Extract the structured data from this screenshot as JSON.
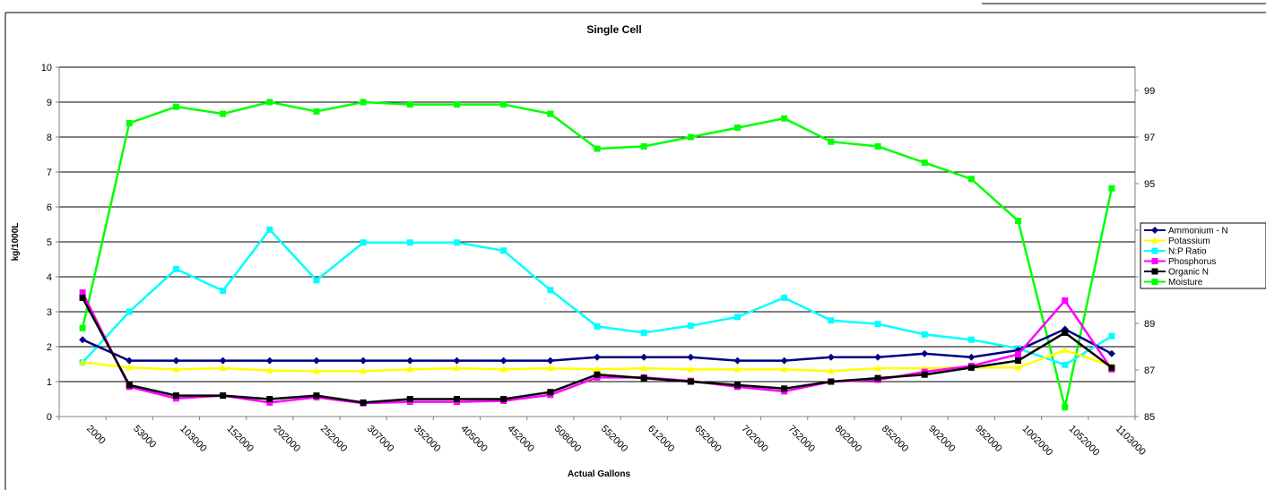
{
  "chart_data": {
    "type": "line",
    "title": "Single Cell",
    "xlabel": "Actual Gallons",
    "ylabel": "kg/1000L",
    "ylim": [
      0,
      10
    ],
    "y2lim": [
      85,
      100
    ],
    "yticks": [
      0,
      1,
      2,
      3,
      4,
      5,
      6,
      7,
      8,
      9,
      10
    ],
    "y2ticks": [
      85,
      87,
      89,
      91,
      93,
      95,
      97,
      99
    ],
    "categories": [
      "2000",
      "53000",
      "103000",
      "152000",
      "202000",
      "252000",
      "307000",
      "352000",
      "405000",
      "452000",
      "508000",
      "552000",
      "612000",
      "652000",
      "702000",
      "752000",
      "802000",
      "852000",
      "902000",
      "952000",
      "1002000",
      "1052000",
      "1103000"
    ],
    "grid": "horizontal",
    "legend_position": "right",
    "series": [
      {
        "name": "Ammonium - N",
        "axis": "left",
        "color": "#000080",
        "marker": "diamond",
        "values": [
          2.2,
          1.6,
          1.6,
          1.6,
          1.6,
          1.6,
          1.6,
          1.6,
          1.6,
          1.6,
          1.6,
          1.7,
          1.7,
          1.7,
          1.6,
          1.6,
          1.7,
          1.7,
          1.8,
          1.7,
          1.9,
          2.5,
          1.8
        ]
      },
      {
        "name": "Potassium",
        "axis": "left",
        "color": "#ffff00",
        "marker": "triangle",
        "values": [
          1.55,
          1.4,
          1.35,
          1.38,
          1.32,
          1.3,
          1.3,
          1.35,
          1.38,
          1.35,
          1.38,
          1.35,
          1.38,
          1.35,
          1.35,
          1.35,
          1.3,
          1.38,
          1.38,
          1.4,
          1.4,
          1.9,
          1.45
        ]
      },
      {
        "name": "N:P Ratio",
        "axis": "left",
        "color": "#00ffff",
        "marker": "square",
        "values": [
          1.55,
          3.0,
          4.22,
          3.6,
          5.35,
          3.9,
          4.98,
          4.98,
          4.98,
          4.75,
          3.62,
          2.58,
          2.4,
          2.6,
          2.85,
          3.4,
          2.75,
          2.65,
          2.35,
          2.2,
          1.95,
          1.48,
          2.3
        ]
      },
      {
        "name": "Phosphorus",
        "axis": "left",
        "color": "#ff00ff",
        "marker": "square",
        "values": [
          3.55,
          0.85,
          0.52,
          0.6,
          0.4,
          0.55,
          0.38,
          0.42,
          0.42,
          0.45,
          0.62,
          1.12,
          1.12,
          1.02,
          0.85,
          0.72,
          1.0,
          1.05,
          1.28,
          1.45,
          1.78,
          3.32,
          1.35
        ]
      },
      {
        "name": "Organic N",
        "axis": "left",
        "color": "#000000",
        "marker": "square",
        "values": [
          3.4,
          0.9,
          0.6,
          0.6,
          0.5,
          0.6,
          0.4,
          0.5,
          0.5,
          0.5,
          0.7,
          1.2,
          1.1,
          1.0,
          0.9,
          0.8,
          1.0,
          1.1,
          1.2,
          1.4,
          1.6,
          2.4,
          1.4
        ]
      },
      {
        "name": "Moisture",
        "axis": "right",
        "color": "#00ff00",
        "marker": "square",
        "values": [
          88.8,
          97.6,
          98.3,
          98.0,
          98.5,
          98.1,
          98.5,
          98.4,
          98.4,
          98.4,
          98.0,
          96.5,
          96.6,
          97.0,
          97.4,
          97.8,
          96.8,
          96.6,
          95.9,
          95.2,
          93.4,
          85.4,
          94.8
        ]
      }
    ]
  }
}
